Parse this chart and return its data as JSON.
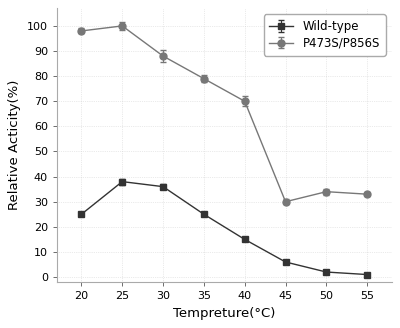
{
  "x": [
    20,
    25,
    30,
    35,
    40,
    45,
    50,
    55
  ],
  "wild_type_y": [
    25,
    38,
    36,
    25,
    15,
    6,
    2,
    1
  ],
  "wild_type_err": [
    0.5,
    1.2,
    1.0,
    0.8,
    0.7,
    0.5,
    0.4,
    0.3
  ],
  "mutant_y": [
    98,
    100,
    88,
    79,
    70,
    30,
    34,
    33
  ],
  "mutant_err": [
    1.0,
    1.5,
    2.5,
    1.5,
    2.0,
    1.0,
    1.2,
    0.8
  ],
  "xlabel": "Tempreture(°C)",
  "ylabel": "Relative Acticity(%)",
  "legend_wild": "Wild-type",
  "legend_mutant": "P473S/P856S",
  "xlim": [
    17,
    58
  ],
  "ylim": [
    -2,
    107
  ],
  "yticks": [
    0,
    10,
    20,
    30,
    40,
    50,
    60,
    70,
    80,
    90,
    100
  ],
  "xticks": [
    20,
    25,
    30,
    35,
    40,
    45,
    50,
    55
  ],
  "wild_color": "#333333",
  "mutant_color": "#777777",
  "marker_wild": "s",
  "marker_mutant": "o",
  "linewidth": 1.0,
  "markersize": 5,
  "capsize": 2,
  "elinewidth": 0.8,
  "legend_fontsize": 8.5,
  "axis_fontsize": 9.5,
  "tick_fontsize": 8,
  "fig_facecolor": "#ffffff",
  "ax_facecolor": "#ffffff",
  "spine_color": "#aaaaaa",
  "grid_color": "#cccccc"
}
